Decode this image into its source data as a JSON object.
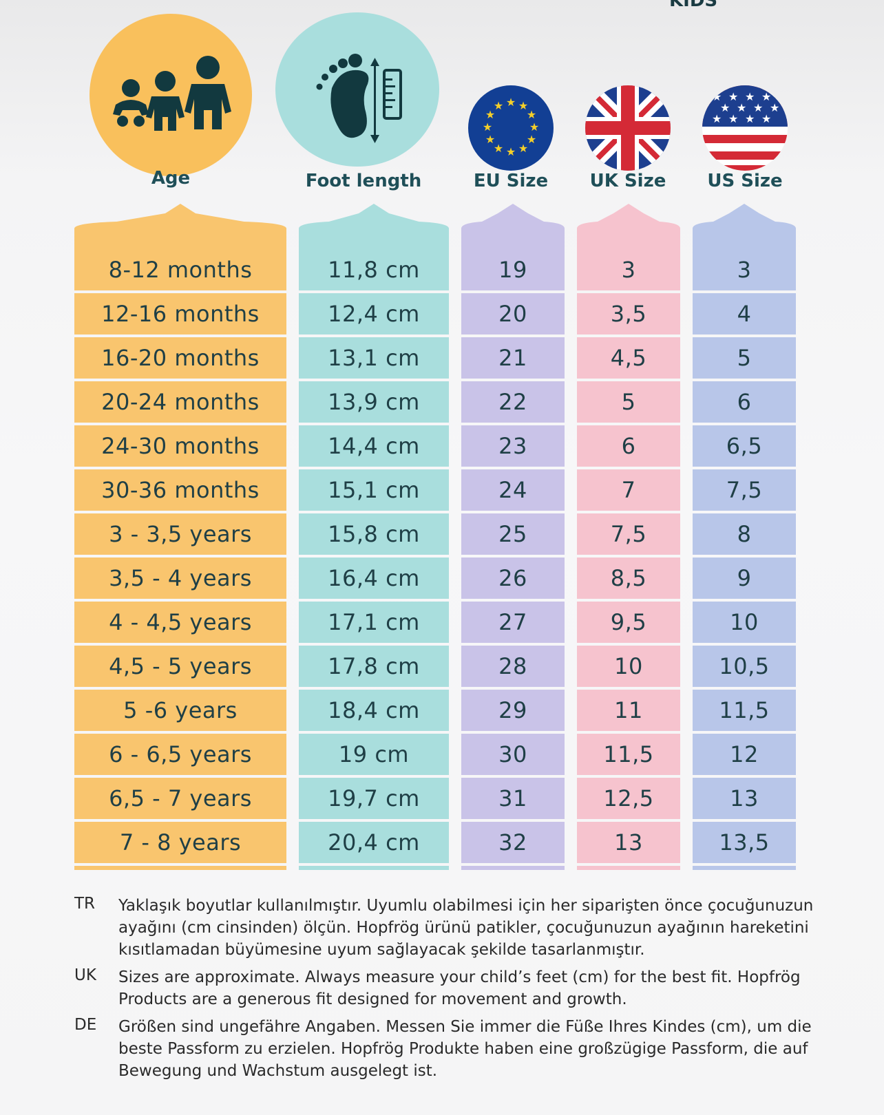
{
  "header": {
    "top_word": "KIDS"
  },
  "columns": [
    {
      "key": "age",
      "label": "Age",
      "icon": "children-icon",
      "color": "#f9c56e",
      "cells": [
        "8-12 months",
        "12-16 months",
        "16-20 months",
        "20-24 months",
        "24-30 months",
        "30-36 months",
        "3 - 3,5 years",
        "3,5 - 4 years",
        "4 - 4,5 years",
        "4,5 - 5 years",
        "5 -6 years",
        "6 - 6,5 years",
        "6,5 - 7 years",
        "7 - 8 years"
      ]
    },
    {
      "key": "foot",
      "label": "Foot length",
      "icon": "foot-ruler-icon",
      "color": "#a9dedd",
      "cells": [
        "11,8 cm",
        "12,4 cm",
        "13,1 cm",
        "13,9 cm",
        "14,4 cm",
        "15,1 cm",
        "15,8 cm",
        "16,4 cm",
        "17,1 cm",
        "17,8 cm",
        "18,4 cm",
        "19 cm",
        "19,7 cm",
        "20,4 cm"
      ]
    },
    {
      "key": "eu",
      "label": "EU Size",
      "icon": "eu-flag-icon",
      "color": "#c9c3e8",
      "cells": [
        "19",
        "20",
        "21",
        "22",
        "23",
        "24",
        "25",
        "26",
        "27",
        "28",
        "29",
        "30",
        "31",
        "32"
      ]
    },
    {
      "key": "uk",
      "label": "UK Size",
      "icon": "uk-flag-icon",
      "color": "#f6c3ce",
      "cells": [
        "3",
        "3,5",
        "4,5",
        "5",
        "6",
        "7",
        "7,5",
        "8,5",
        "9,5",
        "10",
        "11",
        "11,5",
        "12,5",
        "13"
      ]
    },
    {
      "key": "us",
      "label": "US Size",
      "icon": "us-flag-icon",
      "color": "#b8c6e9",
      "cells": [
        "3",
        "4",
        "5",
        "6",
        "6,5",
        "7,5",
        "8",
        "9",
        "10",
        "10,5",
        "11,5",
        "12",
        "13",
        "13,5"
      ]
    }
  ],
  "notes": [
    {
      "lang": "TR",
      "text": "Yaklaşık boyutlar kullanılmıştır. Uyumlu olabilmesi için her siparişten önce çocuğunuzun ayağını (cm cinsinden) ölçün. Hopfrög ürünü patikler, çocuğunuzun ayağının hareketini kısıtlamadan büyümesine uyum sağlayacak şekilde tasarlanmıştır."
    },
    {
      "lang": "UK",
      "text": "Sizes are approximate. Always measure your child’s feet (cm) for the best fit. Hopfrög Products are a generous fit designed for movement and growth."
    },
    {
      "lang": "DE",
      "text": "Größen sind ungefähre Angaben. Messen Sie immer die Füße Ihres Kindes (cm), um die beste Passform zu erzielen. Hopfrög Produkte haben eine großzügige Passform, die auf Bewegung und Wachstum ausgelegt ist."
    }
  ]
}
